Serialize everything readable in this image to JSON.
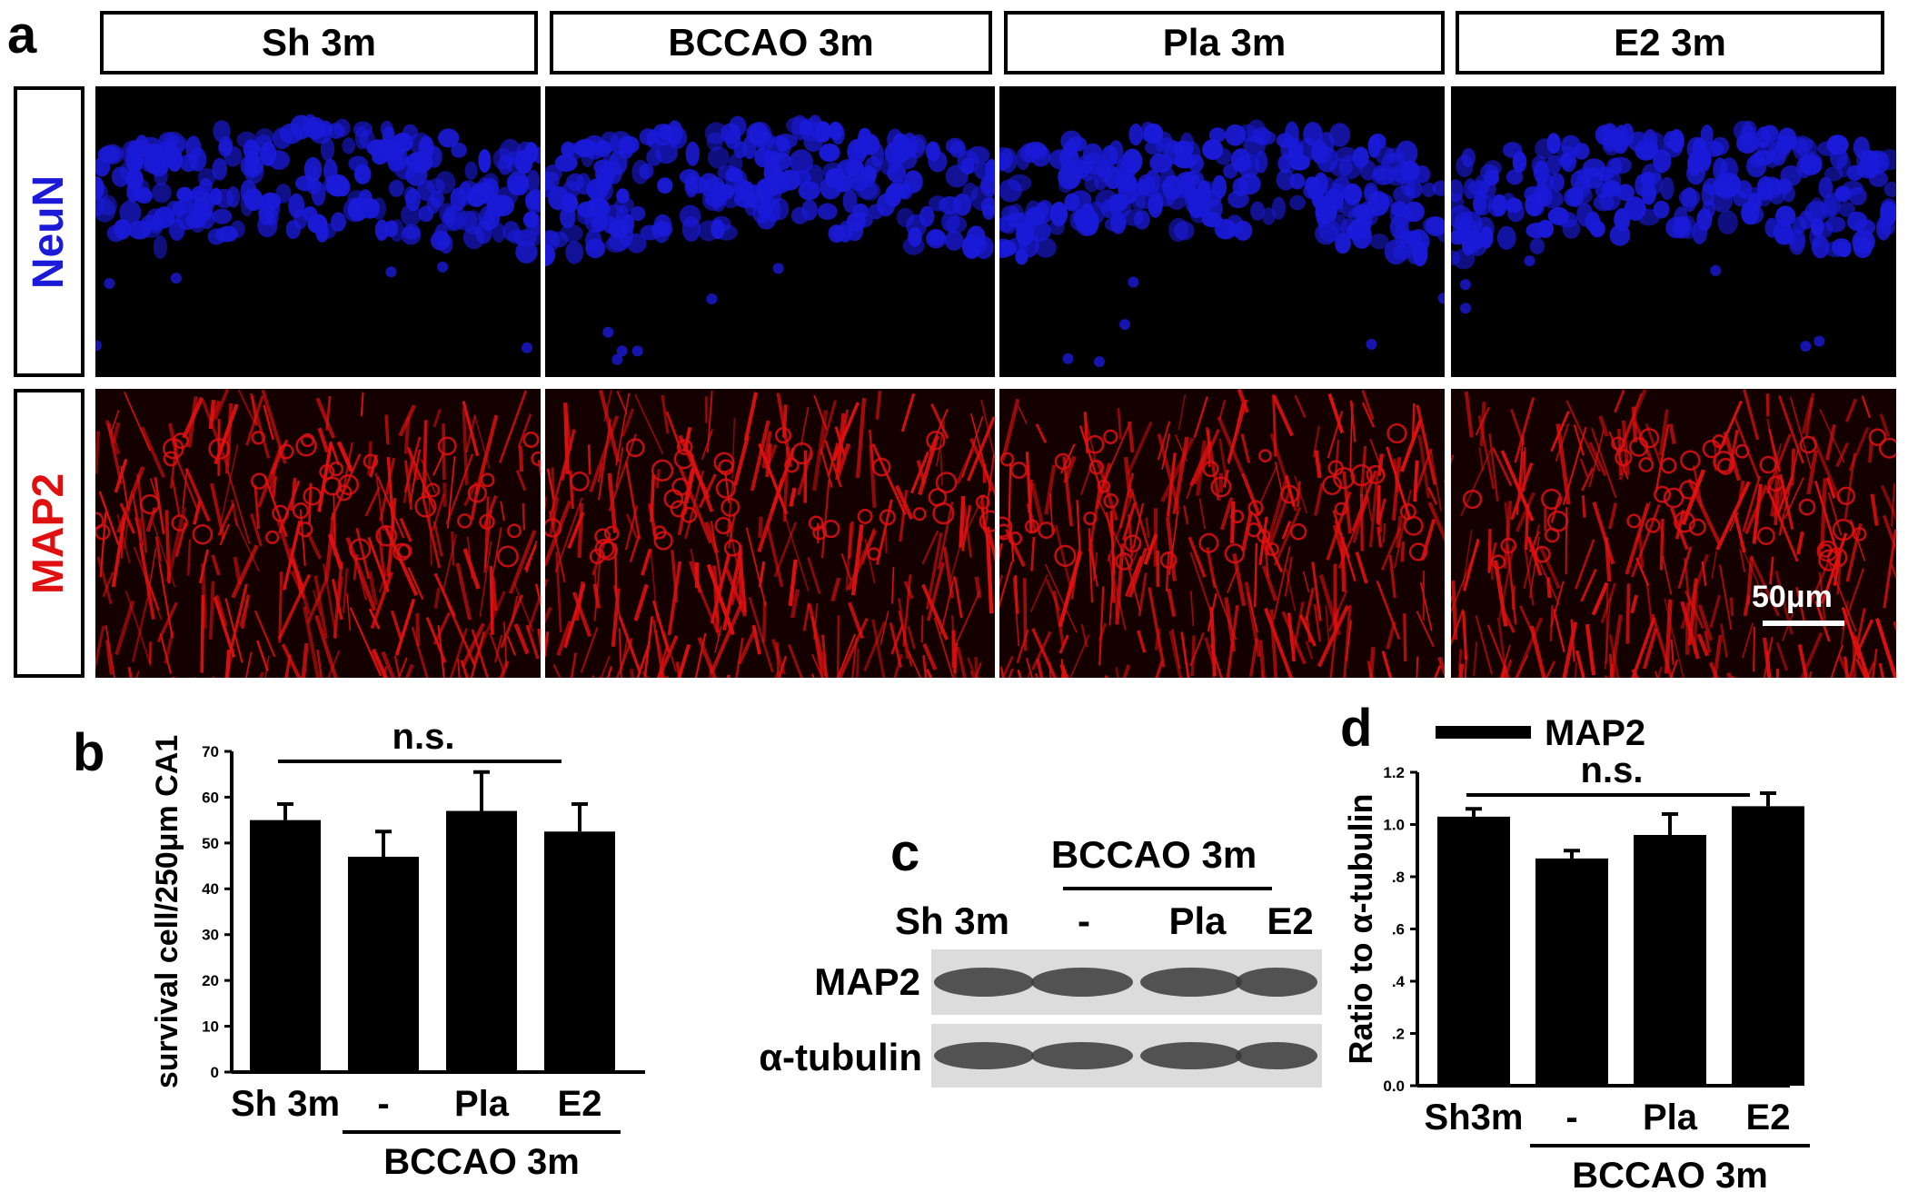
{
  "panel_a": {
    "letter": "a",
    "headers": [
      "Sh 3m",
      "BCCAO 3m",
      "Pla 3m",
      "E2 3m"
    ],
    "rows": [
      {
        "label": "NeuN",
        "color": "#1a1ad8",
        "bg": "#000000"
      },
      {
        "label": "MAP2",
        "color": "#e01010",
        "bg": "#150000"
      }
    ],
    "scale_bar": "50μm"
  },
  "panel_c": {
    "letter": "c",
    "group_label": "BCCAO 3m",
    "lanes": [
      "Sh 3m",
      "-",
      "Pla",
      "E2"
    ],
    "bands": [
      "MAP2",
      "α-tubulin"
    ]
  },
  "chart_data": [
    {
      "id": "b",
      "type": "bar",
      "letter": "b",
      "categories": [
        "Sh 3m",
        "-",
        "Pla",
        "E2"
      ],
      "values": [
        55,
        47,
        57,
        52.5
      ],
      "errors": [
        3.5,
        5.5,
        8.5,
        6
      ],
      "ylabel": "survival cell/250μm CA1",
      "ylim": [
        0,
        70
      ],
      "yticks": [
        "0",
        "10",
        "20",
        "30",
        "40",
        "50",
        "60",
        "70"
      ],
      "significance": "n.s.",
      "group_label": "BCCAO 3m",
      "bar_color": "#000000"
    },
    {
      "id": "d",
      "type": "bar",
      "letter": "d",
      "categories": [
        "Sh3m",
        "-",
        "Pla",
        "E2"
      ],
      "values": [
        1.03,
        0.87,
        0.96,
        1.07
      ],
      "errors": [
        0.03,
        0.03,
        0.08,
        0.05
      ],
      "ylabel": "Ratio to α-tubulin",
      "ylim": [
        0,
        1.2
      ],
      "yticks": [
        "0.0",
        ".2",
        ".4",
        ".6",
        ".8",
        "1.0",
        "1.2"
      ],
      "legend": "MAP2",
      "significance": "n.s.",
      "group_label": "BCCAO 3m",
      "bar_color": "#000000"
    }
  ]
}
